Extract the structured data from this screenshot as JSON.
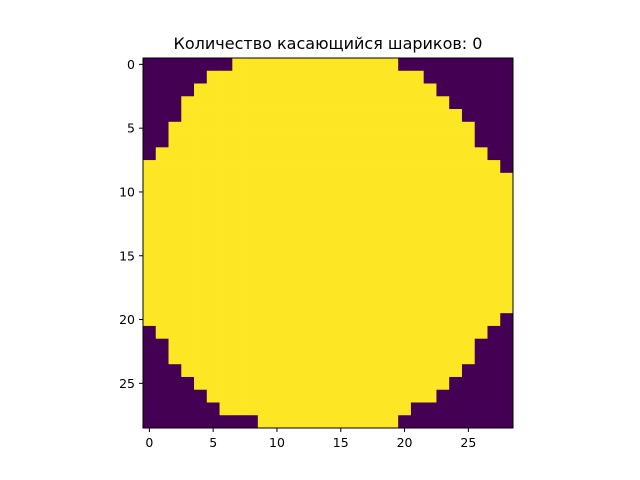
{
  "chart_data": {
    "type": "heatmap",
    "title": "Количество касающийся шариков: 0",
    "colormap": "viridis",
    "grid": false,
    "rows": 29,
    "cols": 29,
    "value_colors": {
      "0": "#440154",
      "1": "#fde725"
    },
    "xticks": [
      0,
      5,
      10,
      15,
      20,
      25
    ],
    "yticks": [
      0,
      5,
      10,
      15,
      20,
      25
    ],
    "row_spans": [
      [
        7,
        19
      ],
      [
        5,
        21
      ],
      [
        4,
        22
      ],
      [
        3,
        23
      ],
      [
        3,
        24
      ],
      [
        2,
        25
      ],
      [
        2,
        25
      ],
      [
        1,
        26
      ],
      [
        0,
        27
      ],
      [
        0,
        28
      ],
      [
        0,
        28
      ],
      [
        0,
        28
      ],
      [
        0,
        28
      ],
      [
        0,
        28
      ],
      [
        0,
        28
      ],
      [
        0,
        28
      ],
      [
        0,
        28
      ],
      [
        0,
        28
      ],
      [
        0,
        28
      ],
      [
        0,
        28
      ],
      [
        0,
        27
      ],
      [
        1,
        26
      ],
      [
        2,
        25
      ],
      [
        2,
        25
      ],
      [
        3,
        24
      ],
      [
        4,
        23
      ],
      [
        5,
        22
      ],
      [
        6,
        20
      ],
      [
        9,
        19
      ]
    ]
  }
}
